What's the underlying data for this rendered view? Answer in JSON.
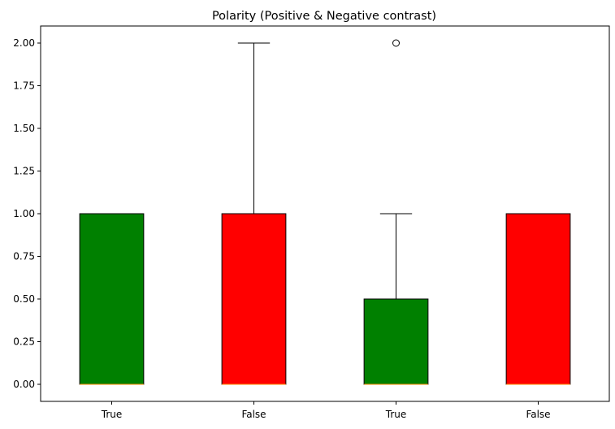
{
  "chart_data": {
    "type": "box",
    "title": "Polarity (Positive & Negative contrast)",
    "xlabel": "",
    "ylabel": "",
    "categories": [
      "True",
      "False",
      "True",
      "False"
    ],
    "boxes": [
      {
        "q1": 0,
        "median": 0,
        "q3": 1,
        "whisker_low": 0,
        "whisker_high": 1,
        "outliers": [],
        "color": "#008000"
      },
      {
        "q1": 0,
        "median": 0,
        "q3": 1,
        "whisker_low": 0,
        "whisker_high": 2,
        "outliers": [],
        "color": "#ff0000"
      },
      {
        "q1": 0,
        "median": 0,
        "q3": 0.5,
        "whisker_low": 0,
        "whisker_high": 1,
        "outliers": [
          2
        ],
        "color": "#008000"
      },
      {
        "q1": 0,
        "median": 0,
        "q3": 1,
        "whisker_low": 0,
        "whisker_high": 1,
        "outliers": [],
        "color": "#ff0000"
      }
    ],
    "ylim": [
      -0.1,
      2.1
    ],
    "yticks": [
      0,
      0.25,
      0.5,
      0.75,
      1,
      1.25,
      1.5,
      1.75,
      2
    ],
    "ytick_labels": [
      "0.00",
      "0.25",
      "0.50",
      "0.75",
      "1.00",
      "1.25",
      "1.50",
      "1.75",
      "2.00"
    ],
    "grid": false,
    "median_color": "#ff8c00"
  }
}
